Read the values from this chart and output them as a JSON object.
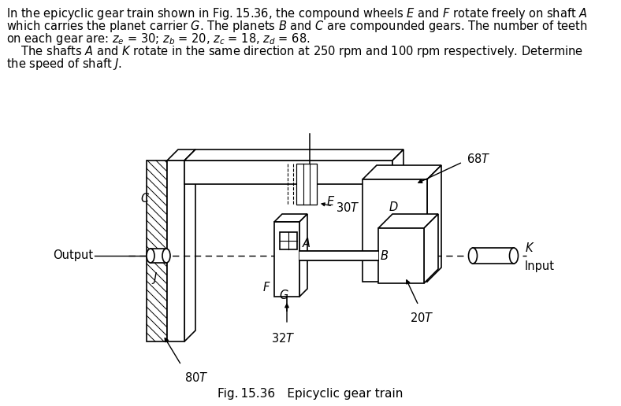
{
  "bg_color": "#ffffff",
  "line_color": "#000000",
  "text_fontsize": 10.5,
  "diagram_fontsize": 10.5,
  "caption_fontsize": 11,
  "line1": "In the epicyclic gear train shown in Fig. 15.36, the compound wheels $E$ and $F$ rotate freely on shaft $A$",
  "line2": "which carries the planet carrier $G$. The planets $B$ and $C$ are compounded gears. The number of teeth",
  "line3": "on each gear are: $z_e$ = 30; $z_b$ = 20, $z_c$ = 18, $z_d$ = 68.",
  "line4": "    The shafts $A$ and $K$ rotate in the same direction at 250 rpm and 100 rpm respectively. Determine",
  "line5": "the speed of shaft $J$.",
  "caption": "Fig. 15.36 Epicyclic gear train"
}
